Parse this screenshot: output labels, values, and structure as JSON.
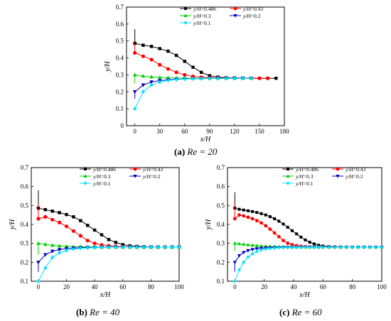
{
  "chart_data": [
    {
      "panel": "a",
      "type": "line",
      "caption_letter": "(a)",
      "caption_rest": "Re = 20",
      "xlabel": "x/H",
      "ylabel": "y/H",
      "xlim": [
        -10,
        180
      ],
      "ylim": [
        0,
        0.7
      ],
      "xticks": [
        0,
        30,
        60,
        90,
        120,
        150,
        180
      ],
      "yticks": [
        0,
        0.1,
        0.2,
        0.3,
        0.4,
        0.5,
        0.6,
        0.7
      ],
      "legend_position": "top-right",
      "grid": false,
      "series": [
        {
          "name": "y/H=0.486",
          "color": "#000000",
          "marker": "square",
          "spike": 0.57,
          "x": [
            0,
            10,
            20,
            30,
            40,
            50,
            60,
            70,
            80,
            90,
            100,
            110,
            120,
            130,
            140,
            150,
            160,
            170
          ],
          "y": [
            0.486,
            0.475,
            0.468,
            0.455,
            0.44,
            0.415,
            0.38,
            0.345,
            0.315,
            0.295,
            0.287,
            0.283,
            0.282,
            0.281,
            0.28,
            0.28,
            0.28,
            0.28
          ]
        },
        {
          "name": "y/H=0.43",
          "color": "#ff0000",
          "marker": "circle",
          "spike": 0.49,
          "x": [
            0,
            10,
            20,
            30,
            40,
            50,
            60,
            70,
            80,
            90,
            100,
            110,
            120,
            130,
            140,
            150,
            160
          ],
          "y": [
            0.43,
            0.41,
            0.39,
            0.36,
            0.335,
            0.315,
            0.3,
            0.291,
            0.286,
            0.283,
            0.282,
            0.281,
            0.28,
            0.28,
            0.28,
            0.28,
            0.28
          ]
        },
        {
          "name": "y/H=0.3",
          "color": "#00d000",
          "marker": "triangle-up",
          "spike": 0.25,
          "x": [
            0,
            10,
            20,
            30,
            40,
            50,
            60,
            70,
            80,
            90,
            100,
            110,
            120,
            130,
            140
          ],
          "y": [
            0.3,
            0.293,
            0.288,
            0.285,
            0.283,
            0.282,
            0.281,
            0.28,
            0.28,
            0.28,
            0.28,
            0.28,
            0.28,
            0.28,
            0.28
          ]
        },
        {
          "name": "y/H=0.2",
          "color": "#0000c0",
          "marker": "triangle-down",
          "spike": 0.16,
          "x": [
            0,
            10,
            20,
            30,
            40,
            50,
            60,
            70,
            80,
            90,
            100,
            110,
            120,
            130,
            140
          ],
          "y": [
            0.2,
            0.24,
            0.258,
            0.266,
            0.271,
            0.274,
            0.276,
            0.277,
            0.278,
            0.279,
            0.279,
            0.28,
            0.28,
            0.28,
            0.28
          ]
        },
        {
          "name": "y/H=0.1",
          "color": "#00e0ff",
          "marker": "diamond",
          "spike": null,
          "x": [
            0,
            10,
            20,
            30,
            40,
            50,
            60,
            70,
            80,
            90,
            100,
            110,
            120,
            130,
            140
          ],
          "y": [
            0.1,
            0.2,
            0.24,
            0.258,
            0.267,
            0.272,
            0.275,
            0.277,
            0.278,
            0.279,
            0.279,
            0.28,
            0.28,
            0.28,
            0.28
          ]
        }
      ]
    },
    {
      "panel": "b",
      "type": "line",
      "caption_letter": "(b)",
      "caption_rest": "Re = 40",
      "xlabel": "x/H",
      "ylabel": "y/H",
      "xlim": [
        -5,
        100
      ],
      "ylim": [
        0.1,
        0.7
      ],
      "xticks": [
        0,
        20,
        40,
        60,
        80,
        100
      ],
      "yticks": [
        0.1,
        0.2,
        0.3,
        0.4,
        0.5,
        0.6,
        0.7
      ],
      "legend_position": "top-right",
      "grid": false,
      "series": [
        {
          "name": "y/H=0.486",
          "color": "#000000",
          "marker": "square",
          "spike": 0.58,
          "x": [
            0,
            5,
            10,
            15,
            20,
            25,
            30,
            35,
            40,
            45,
            50,
            55,
            60,
            65,
            70,
            75,
            80,
            85,
            90,
            95,
            100
          ],
          "y": [
            0.486,
            0.478,
            0.47,
            0.462,
            0.452,
            0.44,
            0.42,
            0.395,
            0.37,
            0.345,
            0.32,
            0.305,
            0.293,
            0.287,
            0.284,
            0.282,
            0.281,
            0.28,
            0.28,
            0.28,
            0.28
          ]
        },
        {
          "name": "y/H=0.43",
          "color": "#ff0000",
          "marker": "circle",
          "spike": 0.51,
          "x": [
            0,
            5,
            10,
            15,
            20,
            25,
            30,
            35,
            40,
            45,
            50,
            55,
            60,
            65,
            70,
            75,
            80,
            85,
            90
          ],
          "y": [
            0.43,
            0.44,
            0.425,
            0.41,
            0.39,
            0.365,
            0.34,
            0.315,
            0.3,
            0.292,
            0.287,
            0.284,
            0.282,
            0.281,
            0.28,
            0.28,
            0.28,
            0.28,
            0.28
          ]
        },
        {
          "name": "y/H=0.3",
          "color": "#00d000",
          "marker": "triangle-up",
          "spike": 0.24,
          "x": [
            0,
            5,
            10,
            15,
            20,
            25,
            30,
            35,
            40,
            45,
            50,
            55,
            60,
            65,
            70,
            75,
            80,
            85,
            90,
            95,
            100
          ],
          "y": [
            0.3,
            0.295,
            0.29,
            0.287,
            0.285,
            0.283,
            0.282,
            0.281,
            0.28,
            0.28,
            0.28,
            0.28,
            0.28,
            0.28,
            0.28,
            0.28,
            0.28,
            0.28,
            0.28,
            0.28,
            0.28
          ]
        },
        {
          "name": "y/H=0.2",
          "color": "#0000c0",
          "marker": "triangle-down",
          "spike": 0.15,
          "x": [
            0,
            5,
            10,
            15,
            20,
            25,
            30,
            35,
            40,
            45,
            50,
            55,
            60,
            65,
            70,
            75,
            80,
            85,
            90,
            95,
            100
          ],
          "y": [
            0.2,
            0.24,
            0.258,
            0.267,
            0.272,
            0.275,
            0.277,
            0.278,
            0.279,
            0.279,
            0.28,
            0.28,
            0.28,
            0.28,
            0.28,
            0.28,
            0.28,
            0.28,
            0.28,
            0.28,
            0.28
          ]
        },
        {
          "name": "y/H=0.1",
          "color": "#00e0ff",
          "marker": "diamond",
          "spike": null,
          "x": [
            0,
            5,
            10,
            15,
            20,
            25,
            30,
            35,
            40,
            45,
            50,
            55,
            60,
            65,
            70,
            75,
            80,
            85,
            90,
            95,
            100
          ],
          "y": [
            0.1,
            0.17,
            0.225,
            0.25,
            0.262,
            0.27,
            0.274,
            0.276,
            0.278,
            0.279,
            0.279,
            0.28,
            0.28,
            0.28,
            0.28,
            0.28,
            0.28,
            0.28,
            0.28,
            0.28,
            0.28
          ]
        }
      ]
    },
    {
      "panel": "c",
      "type": "line",
      "caption_letter": "(c)",
      "caption_rest": "Re = 60",
      "xlabel": "x/H",
      "ylabel": "y/H",
      "xlim": [
        -5,
        100
      ],
      "ylim": [
        0.1,
        0.7
      ],
      "xticks": [
        0,
        20,
        40,
        60,
        80,
        100
      ],
      "yticks": [
        0.1,
        0.2,
        0.3,
        0.4,
        0.5,
        0.6,
        0.7
      ],
      "legend_position": "top-right",
      "grid": false,
      "series": [
        {
          "name": "y/H=0.486",
          "color": "#000000",
          "marker": "square",
          "spike": 0.57,
          "x": [
            0,
            3,
            6,
            9,
            12,
            15,
            18,
            21,
            24,
            27,
            30,
            33,
            36,
            39,
            42,
            45,
            48,
            51,
            54,
            57,
            60,
            64,
            68,
            72,
            76,
            80,
            84,
            88,
            92,
            96,
            100
          ],
          "y": [
            0.486,
            0.48,
            0.476,
            0.472,
            0.468,
            0.463,
            0.457,
            0.45,
            0.441,
            0.43,
            0.417,
            0.402,
            0.385,
            0.367,
            0.35,
            0.333,
            0.318,
            0.306,
            0.297,
            0.29,
            0.286,
            0.283,
            0.282,
            0.281,
            0.28,
            0.28,
            0.28,
            0.28,
            0.28,
            0.28,
            0.28
          ]
        },
        {
          "name": "y/H=0.43",
          "color": "#ff0000",
          "marker": "circle",
          "spike": 0.51,
          "x": [
            0,
            3,
            6,
            9,
            12,
            15,
            18,
            21,
            24,
            27,
            30,
            33,
            36,
            39,
            42,
            45,
            48,
            51,
            54,
            57,
            60,
            64,
            68,
            72,
            76,
            80,
            84,
            88,
            92,
            96,
            100
          ],
          "y": [
            0.43,
            0.45,
            0.445,
            0.438,
            0.43,
            0.42,
            0.408,
            0.393,
            0.375,
            0.355,
            0.335,
            0.315,
            0.301,
            0.293,
            0.288,
            0.285,
            0.283,
            0.282,
            0.281,
            0.28,
            0.28,
            0.28,
            0.28,
            0.28,
            0.28,
            0.28,
            0.28,
            0.28,
            0.28,
            0.28,
            0.28
          ]
        },
        {
          "name": "y/H=0.3",
          "color": "#00d000",
          "marker": "triangle-up",
          "spike": 0.26,
          "x": [
            0,
            3,
            6,
            9,
            12,
            15,
            18,
            21,
            24,
            27,
            30,
            33,
            36,
            39,
            42,
            45,
            48,
            51,
            54,
            57,
            60,
            64,
            68,
            72,
            76,
            80,
            84,
            88,
            92,
            96,
            100
          ],
          "y": [
            0.3,
            0.298,
            0.295,
            0.292,
            0.29,
            0.288,
            0.286,
            0.285,
            0.284,
            0.283,
            0.282,
            0.281,
            0.281,
            0.28,
            0.28,
            0.28,
            0.28,
            0.28,
            0.28,
            0.28,
            0.28,
            0.28,
            0.28,
            0.28,
            0.28,
            0.28,
            0.28,
            0.28,
            0.28,
            0.28,
            0.28
          ]
        },
        {
          "name": "y/H=0.2",
          "color": "#0000c0",
          "marker": "triangle-down",
          "spike": 0.15,
          "x": [
            0,
            3,
            6,
            9,
            12,
            15,
            18,
            21,
            24,
            27,
            30,
            33,
            36,
            39,
            42,
            45,
            48,
            51,
            54,
            57,
            60,
            64,
            68,
            72,
            76,
            80,
            84,
            88,
            92,
            96,
            100
          ],
          "y": [
            0.2,
            0.235,
            0.252,
            0.262,
            0.268,
            0.272,
            0.274,
            0.276,
            0.277,
            0.278,
            0.278,
            0.279,
            0.279,
            0.279,
            0.28,
            0.28,
            0.28,
            0.28,
            0.28,
            0.28,
            0.28,
            0.28,
            0.28,
            0.28,
            0.28,
            0.28,
            0.28,
            0.28,
            0.28,
            0.28,
            0.28
          ]
        },
        {
          "name": "y/H=0.1",
          "color": "#00e0ff",
          "marker": "diamond",
          "spike": null,
          "x": [
            0,
            3,
            6,
            9,
            12,
            15,
            18,
            21,
            24,
            27,
            30,
            33,
            36,
            39,
            42,
            45,
            48,
            51,
            54,
            57,
            60,
            64,
            68,
            72,
            76,
            80,
            84,
            88,
            92,
            96,
            100
          ],
          "y": [
            0.1,
            0.16,
            0.2,
            0.228,
            0.245,
            0.257,
            0.265,
            0.27,
            0.273,
            0.275,
            0.277,
            0.278,
            0.278,
            0.279,
            0.279,
            0.28,
            0.28,
            0.28,
            0.28,
            0.28,
            0.28,
            0.28,
            0.28,
            0.28,
            0.28,
            0.28,
            0.28,
            0.28,
            0.28,
            0.28,
            0.28
          ]
        }
      ]
    }
  ]
}
